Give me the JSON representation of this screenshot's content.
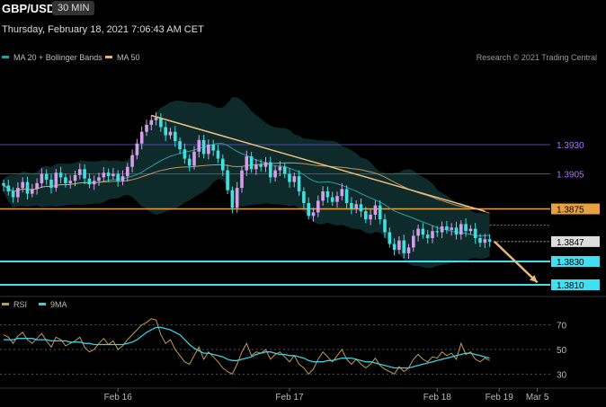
{
  "header": {
    "symbol": "GBP/USD",
    "timeframe": "30 MIN",
    "datetime": "Thursday, February 18, 2021 7:06:43 AM CET",
    "credit": "Research © 2021 Trading Central"
  },
  "legend": {
    "ma20": {
      "label": "MA 20 + Bollinger Bands",
      "color": "#2a9d9d"
    },
    "ma50": {
      "label": "MA 50",
      "color": "#e8b070"
    },
    "rsi": {
      "label": "RSI",
      "color": "#c49a50"
    },
    "ma9": {
      "label": "9MA",
      "color": "#3ccfe0"
    }
  },
  "colors": {
    "up": "#d49ee8",
    "down": "#40e0e0",
    "resistance": "#e8a040",
    "support": "#40e0f0",
    "pivot_line": "#4a4ab0",
    "pivot_label": "#b070ff",
    "trendline": "#f0c080",
    "arrow": "#e8b878",
    "band_fill": "#0f2a2a"
  },
  "chart_data": {
    "type": "candlestick",
    "x_ticks": [
      "Feb 16",
      "Feb 17",
      "Feb 18",
      "Feb 19",
      "Mar 5"
    ],
    "x_tick_bars": [
      24,
      60,
      91,
      104,
      112
    ],
    "price_ylim": [
      1.38,
      1.4
    ],
    "price_levels": [
      {
        "value": 1.393,
        "label": "1.3930",
        "kind": "pivot"
      },
      {
        "value": 1.3905,
        "label": "1.3905",
        "kind": "pivot"
      },
      {
        "value": 1.3875,
        "label": "1.3875",
        "kind": "resistance"
      },
      {
        "value": 1.3847,
        "label": "1.3847",
        "kind": "last"
      },
      {
        "value": 1.383,
        "label": "1.3830",
        "kind": "support"
      },
      {
        "value": 1.381,
        "label": "1.3810",
        "kind": "support"
      }
    ],
    "close": [
      1.3895,
      1.389,
      1.3885,
      1.3893,
      1.3898,
      1.3888,
      1.3892,
      1.3897,
      1.3905,
      1.39,
      1.3893,
      1.3906,
      1.3902,
      1.3897,
      1.3899,
      1.3904,
      1.3909,
      1.3901,
      1.3896,
      1.3899,
      1.3902,
      1.3906,
      1.3903,
      1.3905,
      1.3899,
      1.3903,
      1.3911,
      1.3921,
      1.3931,
      1.3941,
      1.3947,
      1.3951,
      1.3953,
      1.3945,
      1.3938,
      1.3941,
      1.3933,
      1.3926,
      1.3918,
      1.3912,
      1.3924,
      1.3934,
      1.3922,
      1.393,
      1.3925,
      1.3918,
      1.3908,
      1.3891,
      1.3876,
      1.3893,
      1.3908,
      1.392,
      1.3909,
      1.3913,
      1.3911,
      1.3915,
      1.3902,
      1.3908,
      1.3911,
      1.3905,
      1.3898,
      1.3903,
      1.389,
      1.388,
      1.3869,
      1.3872,
      1.3882,
      1.389,
      1.3885,
      1.3881,
      1.3886,
      1.3892,
      1.388,
      1.3875,
      1.3879,
      1.3873,
      1.3866,
      1.387,
      1.3878,
      1.3866,
      1.3855,
      1.3845,
      1.384,
      1.3848,
      1.3837,
      1.3842,
      1.3852,
      1.3858,
      1.3853,
      1.385,
      1.3856,
      1.3855,
      1.386,
      1.3857,
      1.3859,
      1.3853,
      1.3862,
      1.3856,
      1.3858,
      1.385,
      1.3846,
      1.3849,
      1.3847
    ],
    "trendline": {
      "from": [
        31,
        1.3955
      ],
      "to": [
        101,
        1.3873
      ]
    },
    "projection_arrow": {
      "from": [
        103,
        1.3847
      ],
      "to": [
        112,
        1.3812
      ]
    },
    "rsi_ylim": [
      20,
      80
    ],
    "rsi_levels": [
      70,
      50,
      30
    ],
    "rsi": [
      62,
      60,
      55,
      61,
      64,
      58,
      55,
      59,
      63,
      57,
      52,
      60,
      58,
      53,
      55,
      57,
      60,
      52,
      48,
      50,
      55,
      59,
      54,
      57,
      50,
      53,
      58,
      62,
      66,
      70,
      72,
      75,
      74,
      62,
      55,
      58,
      50,
      45,
      40,
      38,
      45,
      52,
      42,
      48,
      44,
      40,
      35,
      32,
      30,
      38,
      48,
      55,
      45,
      48,
      47,
      50,
      42,
      46,
      48,
      44,
      40,
      45,
      38,
      35,
      30,
      34,
      42,
      48,
      44,
      40,
      45,
      50,
      42,
      38,
      42,
      38,
      35,
      38,
      43,
      37,
      34,
      32,
      30,
      36,
      32,
      35,
      42,
      46,
      42,
      40,
      44,
      43,
      48,
      45,
      47,
      42,
      55,
      46,
      48,
      42,
      40,
      43,
      41
    ],
    "ma9": [
      58,
      58,
      58,
      59,
      59,
      59,
      59,
      58,
      58,
      58,
      57,
      57,
      57,
      57,
      56,
      56,
      56,
      55,
      55,
      54,
      54,
      54,
      54,
      54,
      54,
      54,
      55,
      56,
      58,
      61,
      64,
      66,
      68,
      68,
      67,
      66,
      64,
      62,
      58,
      54,
      51,
      49,
      47,
      47,
      46,
      45,
      44,
      42,
      41,
      41,
      42,
      43,
      44,
      46,
      47,
      48,
      48,
      47,
      46,
      46,
      45,
      45,
      44,
      43,
      41,
      40,
      40,
      40,
      41,
      41,
      42,
      43,
      43,
      43,
      42,
      41,
      40,
      40,
      39,
      38,
      37,
      36,
      35,
      35,
      35,
      35,
      36,
      37,
      38,
      39,
      40,
      41,
      42,
      43,
      44,
      45,
      46,
      47,
      47,
      46,
      45,
      44,
      43
    ]
  }
}
